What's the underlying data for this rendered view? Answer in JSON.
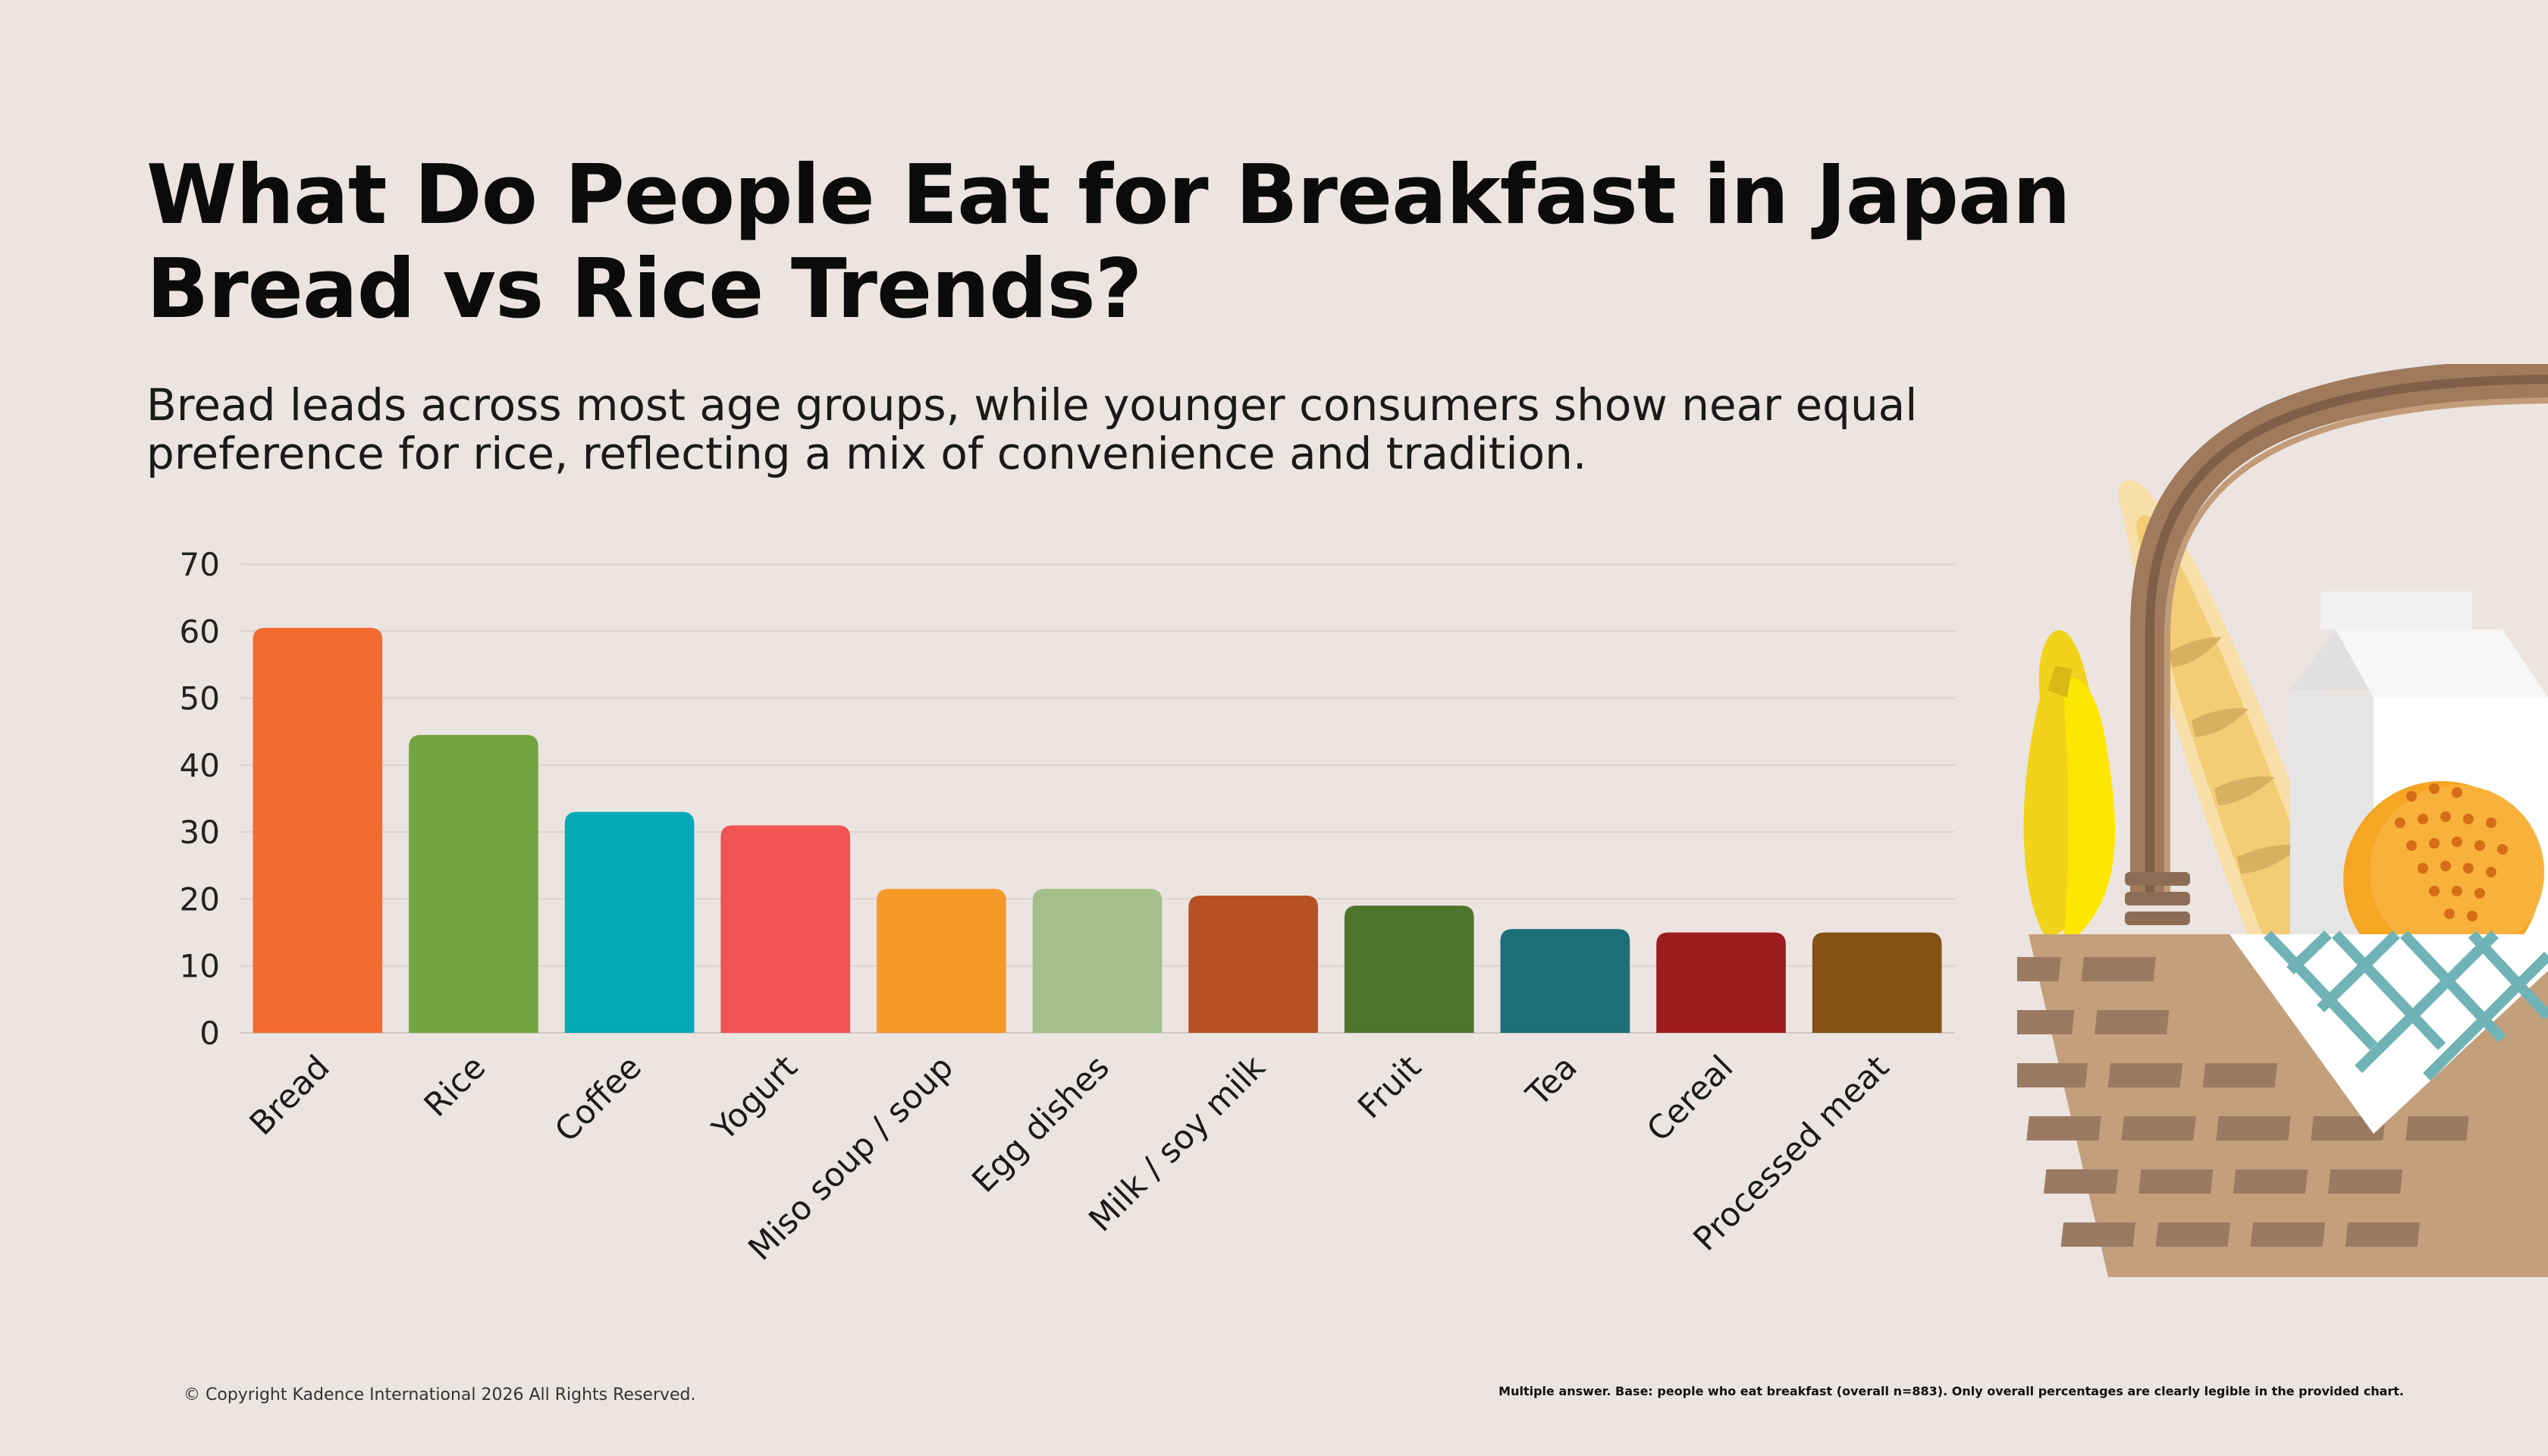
{
  "header": {
    "title_line1": "What Do People Eat for Breakfast in Japan",
    "title_line2": "Bread vs Rice Trends?",
    "subtitle_line1": "Bread leads across most age groups, while younger consumers show near equal",
    "subtitle_line2": "preference for rice, reflecting a mix of convenience and tradition."
  },
  "chart_data": {
    "type": "bar",
    "categories": [
      "Bread",
      "Rice",
      "Coffee",
      "Yogurt",
      "Miso soup / soup",
      "Egg dishes",
      "Milk / soy milk",
      "Fruit",
      "Tea",
      "Cereal",
      "Processed meat"
    ],
    "values": [
      60.5,
      44.5,
      33,
      31,
      21.5,
      21.5,
      20.5,
      19,
      15.5,
      15,
      15
    ],
    "colors": [
      "#f26b30",
      "#72a441",
      "#05a9b8",
      "#f05351",
      "#f89a2a",
      "#a4bf8a",
      "#b55125",
      "#4f742b",
      "#1b6f79",
      "#9c1b1e",
      "#845214"
    ],
    "ylim": [
      0,
      70
    ],
    "yticks": [
      "0",
      "10",
      "20",
      "30",
      "40",
      "50",
      "60",
      "70"
    ],
    "grid": true,
    "xlabel": "",
    "ylabel": ""
  },
  "footer": {
    "copyright": "© Copyright Kadence International 2026 All Rights Reserved.",
    "note": "Multiple answer. Base: people who eat breakfast (overall n=883). Only overall percentages are clearly legible in the provided chart."
  },
  "illustration": {
    "icon": "breakfast-basket-icon",
    "contents": [
      "banana",
      "baguette",
      "milk-carton",
      "orange",
      "napkin"
    ]
  }
}
